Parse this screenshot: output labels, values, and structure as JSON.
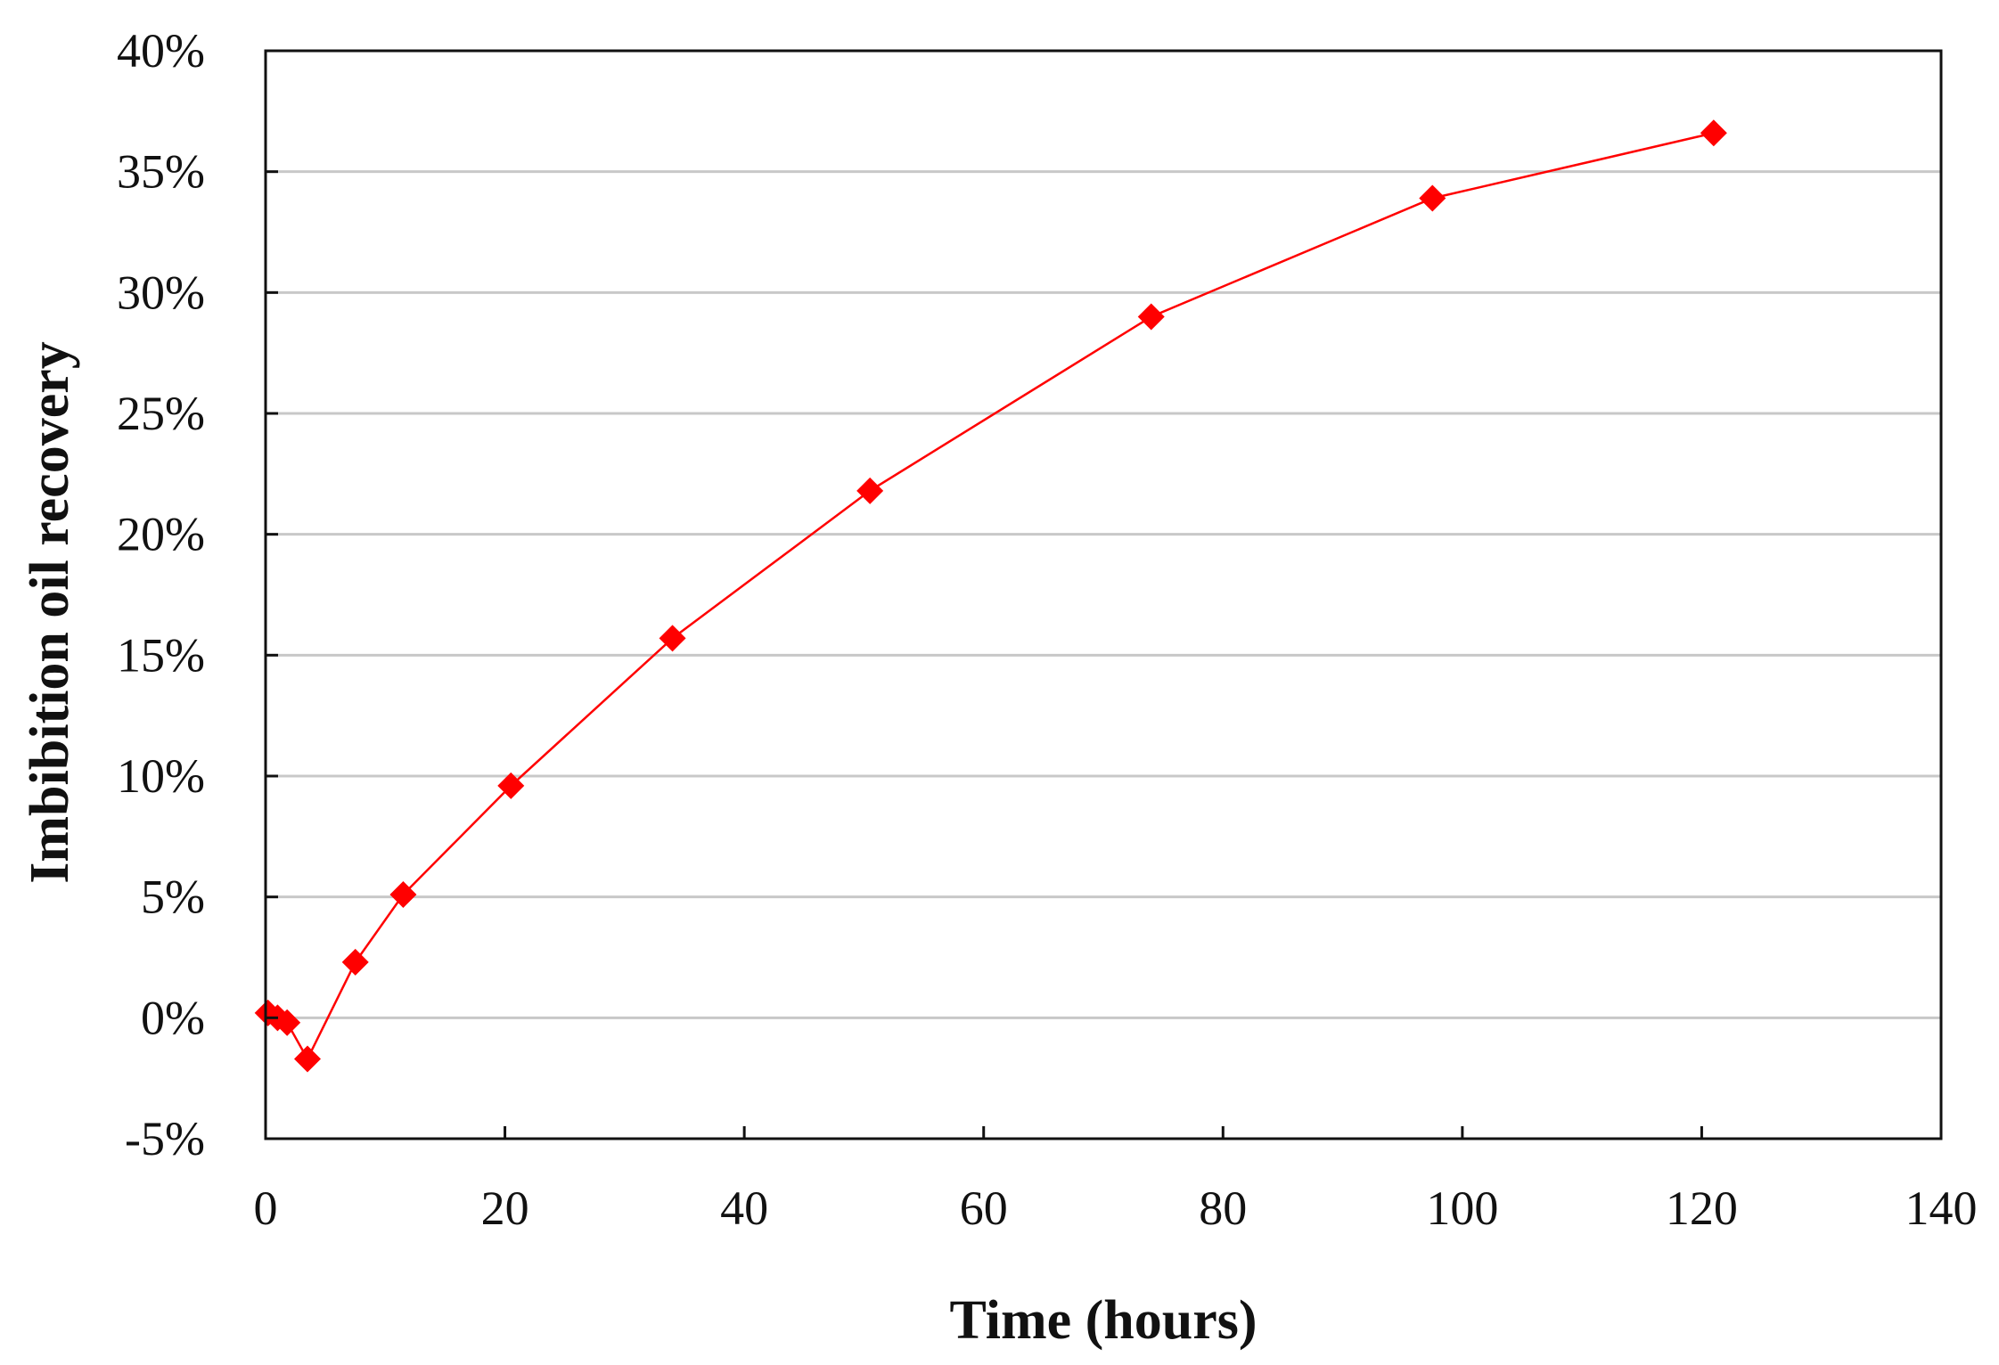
{
  "chart_data": {
    "type": "line",
    "title": "",
    "xlabel": "Time (hours)",
    "ylabel": "Imbibition oil recovery",
    "xlim": [
      0,
      140
    ],
    "ylim": [
      -0.05,
      0.4
    ],
    "xticks": [
      0,
      20,
      40,
      60,
      80,
      100,
      120,
      140
    ],
    "yticks": [
      -0.05,
      0,
      0.05,
      0.1,
      0.15,
      0.2,
      0.25,
      0.3,
      0.35,
      0.4
    ],
    "xtick_labels": [
      "0",
      "20",
      "40",
      "60",
      "80",
      "100",
      "120",
      "140"
    ],
    "ytick_labels": [
      "-5%",
      "0%",
      "5%",
      "10%",
      "15%",
      "20%",
      "25%",
      "30%",
      "35%",
      "40%"
    ],
    "grid": "horizontal",
    "legend": "none",
    "series": [
      {
        "color": "#ff0000",
        "marker": "diamond",
        "x": [
          0.2,
          1.0,
          1.8,
          3.5,
          7.5,
          11.5,
          20.5,
          34.0,
          50.5,
          74.0,
          97.5,
          121.0
        ],
        "y": [
          0.002,
          0.0,
          -0.002,
          -0.017,
          0.023,
          0.051,
          0.096,
          0.157,
          0.218,
          0.29,
          0.339,
          0.366
        ]
      }
    ]
  }
}
